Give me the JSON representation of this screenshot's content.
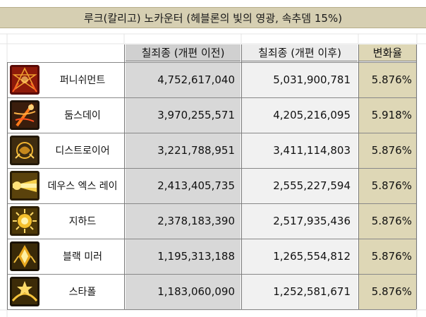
{
  "title": "루크(칼리고) 노카운터 (헤블론의 빛의 영광, 속추뎀 15%)",
  "headers": {
    "before": "칠죄종 (개편 이전)",
    "after": "칠죄종 (개편 이후)",
    "change": "변화율"
  },
  "colors": {
    "title_bg": "#d6cfb2",
    "before_bg": "#d8d8d8",
    "after_bg": "#f1f1f1",
    "change_bg": "#ded7b6"
  },
  "rows": [
    {
      "icon": "punishment-skill-icon",
      "name": "퍼니쉬먼트",
      "before": "4,752,617,040",
      "after": "5,031,900,781",
      "change": "5.876%"
    },
    {
      "icon": "doomsday-skill-icon",
      "name": "둠스데이",
      "before": "3,970,255,571",
      "after": "4,205,216,095",
      "change": "5.918%"
    },
    {
      "icon": "destroyer-skill-icon",
      "name": "디스트로이어",
      "before": "3,221,788,951",
      "after": "3,411,114,803",
      "change": "5.876%"
    },
    {
      "icon": "deus-ex-ray-skill-icon",
      "name": "데우스 엑스 레이",
      "before": "2,413,405,735",
      "after": "2,555,227,594",
      "change": "5.876%"
    },
    {
      "icon": "jihad-skill-icon",
      "name": "지하드",
      "before": "2,378,183,390",
      "after": "2,517,935,436",
      "change": "5.876%"
    },
    {
      "icon": "black-mirror-skill-icon",
      "name": "블랙 미러",
      "before": "1,195,313,188",
      "after": "1,265,554,812",
      "change": "5.876%"
    },
    {
      "icon": "star-fall-skill-icon",
      "name": "스타폴",
      "before": "1,183,060,090",
      "after": "1,252,581,671",
      "change": "5.876%"
    }
  ]
}
